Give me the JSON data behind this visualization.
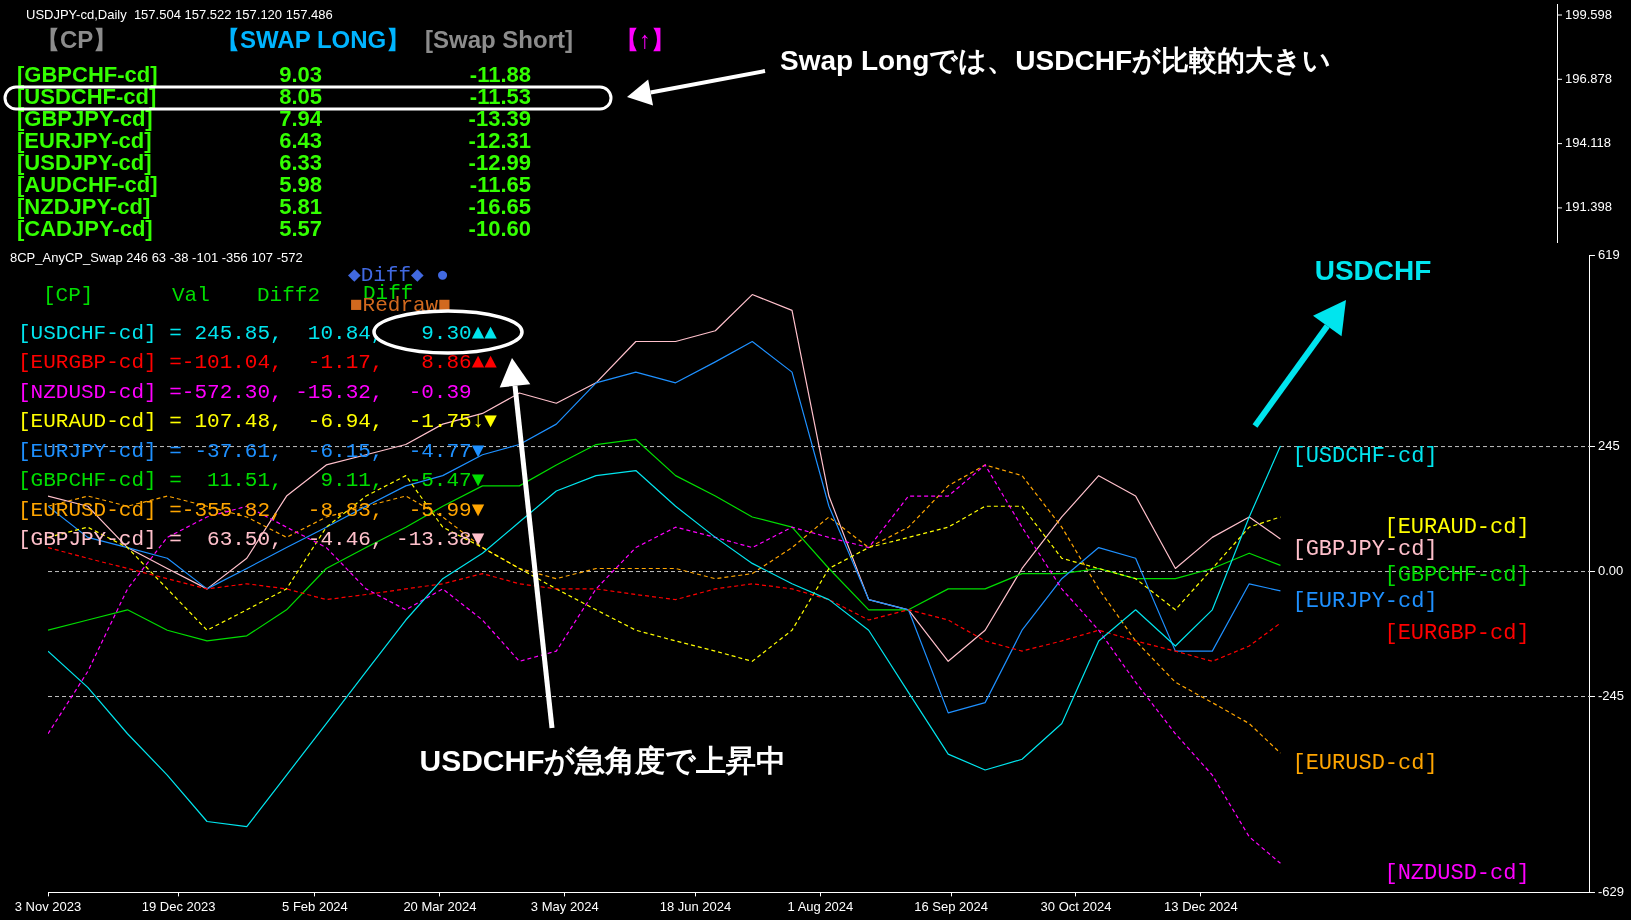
{
  "chart_data": [
    {
      "type": "other",
      "title": "USDJPY-cd,Daily  157.504 157.522 157.120 157.486",
      "annotations": [
        "【CP】",
        "【SWAP LONG】",
        "[Swap Short]",
        "【↑】",
        "[GBPCHF-cd]",
        "9.03",
        "-11.88",
        "[USDCHF-cd]",
        "8.05",
        "-11.53",
        "[GBPJPY-cd]",
        "7.94",
        "-13.39",
        "[EURJPY-cd]",
        "6.43",
        "-12.31",
        "[USDJPY-cd]",
        "6.33",
        "-12.99",
        "[AUDCHF-cd]",
        "5.98",
        "-11.65",
        "[NZDJPY-cd]",
        "5.81",
        "-16.65",
        "[CADJPY-cd]",
        "5.57",
        "-10.60",
        "Swap Longでは、USDCHFが比較的大きい",
        "199.598",
        "196.878",
        "194.118",
        "191.398"
      ]
    },
    {
      "type": "line",
      "title": "8CP_AnyCP_Swap 246 63 -38 -101 -356 107 -572",
      "x": [
        "2023-11-03",
        "2023-11-17",
        "2023-12-01",
        "2023-12-15",
        "2023-12-29",
        "2024-01-12",
        "2024-01-26",
        "2024-02-09",
        "2024-02-23",
        "2024-03-08",
        "2024-03-21",
        "2024-04-04",
        "2024-04-17",
        "2024-04-30",
        "2024-05-14",
        "2024-05-28",
        "2024-06-11",
        "2024-06-25",
        "2024-07-08",
        "2024-07-22",
        "2024-08-04",
        "2024-08-18",
        "2024-09-01",
        "2024-09-15",
        "2024-09-28",
        "2024-10-11",
        "2024-10-25",
        "2024-11-07",
        "2024-11-20",
        "2024-12-04",
        "2024-12-17",
        "2024-12-30",
        "2025-01-10"
      ],
      "xlim": [
        "2023-11-03",
        "2025-04-29"
      ],
      "xticks": [
        {
          "value": "2023-11-03",
          "label": "3 Nov 2023"
        },
        {
          "value": "2023-12-19",
          "label": "19 Dec 2023"
        },
        {
          "value": "2024-02-05",
          "label": "5 Feb 2024"
        },
        {
          "value": "2024-03-20",
          "label": "20 Mar 2024"
        },
        {
          "value": "2024-05-03",
          "label": "3 May 2024"
        },
        {
          "value": "2024-06-18",
          "label": "18 Jun 2024"
        },
        {
          "value": "2024-08-01",
          "label": "1 Aug 2024"
        },
        {
          "value": "2024-09-16",
          "label": "16 Sep 2024"
        },
        {
          "value": "2024-10-30",
          "label": "30 Oct 2024"
        },
        {
          "value": "2024-12-13",
          "label": "13 Dec 2024"
        }
      ],
      "ylim": [
        -629,
        619
      ],
      "yticks": [
        -629,
        -245,
        {
          "value": 0,
          "label": "0.00"
        },
        245,
        619
      ],
      "grid": false,
      "legend": false,
      "marker": "none",
      "ref_lines": [
        {
          "axis": "y",
          "value": 245,
          "line_style": "dashed",
          "color": "#c0c0c0"
        },
        {
          "axis": "y",
          "value": 0,
          "line_style": "dashed",
          "color": "#c0c0c0"
        },
        {
          "axis": "y",
          "value": -245,
          "line_style": "dashed",
          "color": "#c0c0c0"
        }
      ],
      "series": [
        {
          "name": "[USDCHF-cd]",
          "color": "#00e5ee",
          "line_style": "solid",
          "values": [
            -156,
            -227,
            -318,
            -399,
            -490,
            -500,
            -399,
            -298,
            -196,
            -95,
            -14,
            36,
            97,
            158,
            188,
            198,
            128,
            67,
            16,
            -24,
            -55,
            -115,
            -237,
            -358,
            -389,
            -368,
            -298,
            -136,
            -75,
            -146,
            -75,
            107,
            246
          ]
        },
        {
          "name": "[EURGBP-cd]",
          "color": "#ff0000",
          "line_style": "dashed",
          "values": [
            47,
            26,
            6,
            -14,
            -34,
            -24,
            -34,
            -55,
            -45,
            -34,
            -24,
            -4,
            -24,
            -34,
            -34,
            -45,
            -55,
            -34,
            -24,
            -34,
            -55,
            -95,
            -75,
            -95,
            -136,
            -156,
            -136,
            -115,
            -136,
            -156,
            -176,
            -146,
            -101
          ]
        },
        {
          "name": "[NZDUSD-cd]",
          "color": "#ff00ff",
          "line_style": "dashed",
          "values": [
            -318,
            -196,
            -34,
            67,
            107,
            128,
            87,
            47,
            -34,
            -75,
            -34,
            -95,
            -176,
            -156,
            -34,
            47,
            87,
            67,
            47,
            87,
            67,
            47,
            148,
            148,
            209,
            87,
            -34,
            -115,
            -217,
            -318,
            -399,
            -520,
            -572
          ]
        },
        {
          "name": "[EURAUD-cd]",
          "color": "#ffff00",
          "line_style": "dashed",
          "values": [
            67,
            87,
            47,
            -34,
            -115,
            -75,
            -34,
            87,
            148,
            188,
            87,
            47,
            6,
            -34,
            -75,
            -115,
            -136,
            -156,
            -176,
            -115,
            6,
            47,
            67,
            87,
            128,
            128,
            26,
            6,
            -14,
            -75,
            6,
            87,
            107
          ]
        },
        {
          "name": "[EURJPY-cd]",
          "color": "#1e90ff",
          "line_style": "solid",
          "values": [
            128,
            67,
            47,
            26,
            -34,
            6,
            47,
            87,
            128,
            168,
            188,
            229,
            249,
            289,
            370,
            391,
            370,
            411,
            451,
            391,
            128,
            -55,
            -75,
            -277,
            -257,
            -115,
            -14,
            47,
            26,
            -156,
            -156,
            -24,
            -38
          ]
        },
        {
          "name": "[GBPCHF-cd]",
          "color": "#00dd00",
          "line_style": "solid",
          "values": [
            -115,
            -95,
            -75,
            -115,
            -136,
            -126,
            -75,
            6,
            47,
            87,
            128,
            168,
            168,
            209,
            249,
            259,
            188,
            148,
            107,
            87,
            6,
            -75,
            -75,
            -34,
            -34,
            -4,
            -4,
            6,
            -14,
            -14,
            6,
            36,
            12
          ]
        },
        {
          "name": "[EURUSD-cd]",
          "color": "#ffa500",
          "line_style": "dashed",
          "values": [
            128,
            148,
            128,
            148,
            128,
            107,
            67,
            107,
            128,
            148,
            107,
            47,
            6,
            -14,
            6,
            6,
            6,
            -14,
            -4,
            47,
            107,
            47,
            87,
            168,
            209,
            188,
            87,
            -34,
            -136,
            -217,
            -257,
            -298,
            -356
          ]
        },
        {
          "name": "[GBPJPY-cd]",
          "color": "#ffc0cb",
          "line_style": "solid",
          "values": [
            148,
            128,
            47,
            6,
            -34,
            26,
            148,
            209,
            229,
            249,
            289,
            310,
            350,
            330,
            370,
            451,
            451,
            472,
            543,
            512,
            148,
            -55,
            -75,
            -176,
            -115,
            6,
            107,
            188,
            148,
            6,
            67,
            107,
            64
          ]
        }
      ],
      "annotations": [
        "[CP]",
        "Val",
        "Diff2",
        "◆Diff◆ ●",
        "Diff",
        "■Redraw■",
        "[USDCHF-cd] = 245.85,  10.84,   9.30▲▲",
        "[EURGBP-cd] =-101.04,  -1.17,   8.86▲▲",
        "[NZDUSD-cd] =-572.30, -15.32,  -0.39",
        "[EURAUD-cd] = 107.48,  -6.94,  -1.75↓▼",
        "[EURJPY-cd] = -37.61,  -6.15,  -4.77▼",
        "[GBPCHF-cd] =  11.51,   9.11,  -5.47▼",
        "[EURUSD-cd] =-355.82,  -8.83,  -5.99▼",
        "[GBPJPY-cd] =  63.50,  -4.46, -13.38▼",
        "USDCHF",
        "USDCHFが急角度で上昇中"
      ]
    }
  ]
}
